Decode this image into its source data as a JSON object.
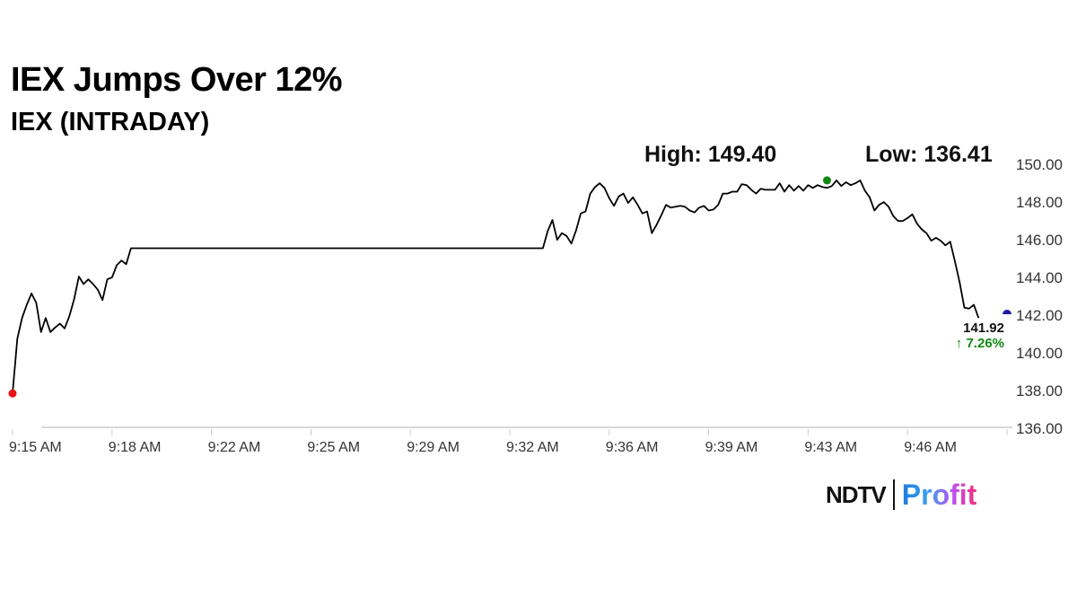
{
  "header": {
    "title": "IEX Jumps Over 12%",
    "subtitle": "IEX (INTRADAY)"
  },
  "stats": {
    "high": "High: 149.40",
    "low": "Low: 136.41"
  },
  "last": {
    "price": "141.92",
    "change": "↑ 7.26%"
  },
  "logo": {
    "brand": "NDTV",
    "product": "Profit"
  },
  "colors": {
    "line": "#000000",
    "open_marker": "#ee1111",
    "high_marker": "#118811",
    "last_marker": "#1a1aa0",
    "change": "#118811",
    "axis_text": "#333333",
    "grid": "#cccccc"
  },
  "chart_data": {
    "type": "line",
    "title": "IEX Jumps Over 12%",
    "subtitle": "IEX (INTRADAY)",
    "xlim": [
      "9:15:00",
      "9:50:00"
    ],
    "ylim": [
      136,
      150
    ],
    "x_ticks": [
      "9:15 AM",
      "9:18 AM",
      "9:22 AM",
      "9:25 AM",
      "9:29 AM",
      "9:32 AM",
      "9:36 AM",
      "9:39 AM",
      "9:43 AM",
      "9:46 AM"
    ],
    "y_ticks": [
      "136.00",
      "138.00",
      "140.00",
      "142.00",
      "144.00",
      "146.00",
      "148.00",
      "150.00"
    ],
    "grid": false,
    "segments": [
      {
        "start": "9:15:00",
        "interval_seconds": 10,
        "values": [
          137.8,
          140.7,
          141.8,
          142.5,
          143.1,
          142.6,
          141.05,
          141.8,
          141.05,
          141.3,
          141.5,
          141.25,
          141.9,
          142.8,
          144.0,
          143.6,
          143.85,
          143.6,
          143.3,
          142.75,
          143.85,
          143.95,
          144.6,
          144.85,
          144.65,
          145.5
        ]
      },
      {
        "start": "9:33:40",
        "interval_seconds": 10,
        "values": [
          145.5,
          146.4,
          147.0,
          145.95,
          146.3,
          146.15,
          145.75,
          146.45,
          147.35,
          147.45,
          148.4,
          148.75,
          148.95,
          148.7,
          148.15,
          147.75,
          148.25,
          148.4,
          147.9,
          148.2,
          147.8,
          147.35,
          147.45,
          146.3,
          146.75,
          147.25,
          147.8,
          147.65,
          147.7,
          147.75,
          147.7,
          147.5,
          147.4,
          147.65,
          147.75,
          147.5,
          147.55,
          147.8,
          148.4,
          148.4,
          148.5,
          148.5,
          148.9,
          148.85,
          148.6,
          148.4,
          148.65,
          148.6,
          148.6,
          148.6,
          148.95,
          148.5,
          148.85,
          148.55,
          148.8,
          148.55,
          148.85,
          148.7,
          148.85,
          148.75,
          148.7,
          148.8,
          149.1,
          148.8,
          149.0,
          148.85,
          148.95,
          149.1,
          148.55,
          148.2,
          147.5,
          147.8,
          147.95,
          147.7,
          147.2,
          146.95,
          146.95,
          147.1,
          147.3,
          146.8,
          146.5,
          146.3,
          145.9,
          146.05,
          145.9,
          145.65,
          145.85,
          144.8,
          143.7,
          142.35,
          142.3,
          142.5,
          141.8
        ]
      }
    ],
    "markers": [
      {
        "name": "open",
        "time": "9:15:00",
        "value": 137.8,
        "color": "#ee1111"
      },
      {
        "name": "high",
        "time": "9:43:40",
        "value": 149.1,
        "color": "#118811"
      },
      {
        "name": "last",
        "time": "9:50:00",
        "value": 142.0,
        "color": "#1a1aa0"
      }
    ],
    "annotations": [
      "High: 149.40",
      "Low: 136.41",
      "141.92",
      "↑ 7.26%"
    ]
  }
}
